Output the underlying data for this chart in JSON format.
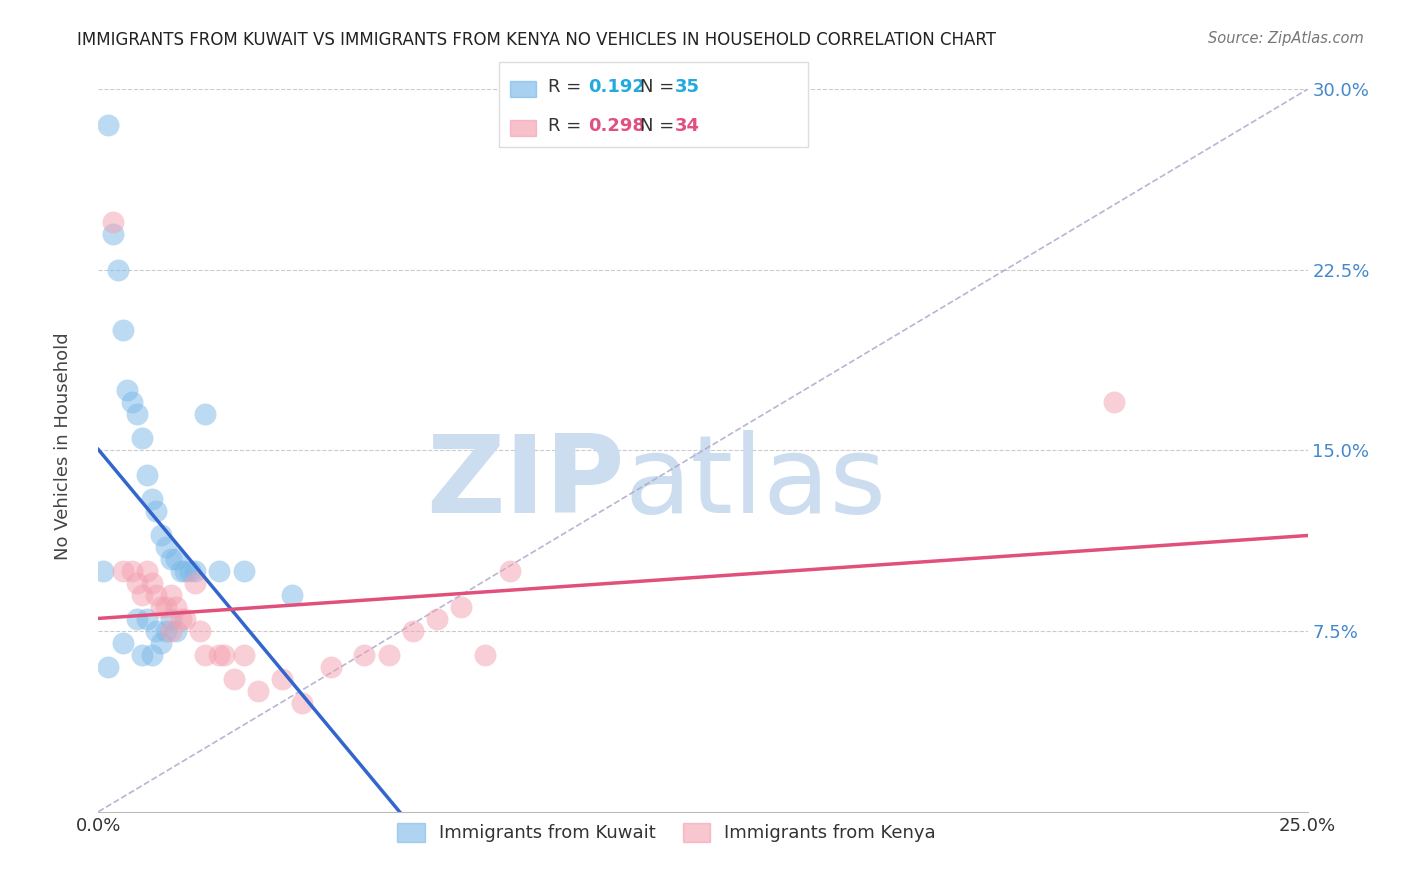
{
  "title": "IMMIGRANTS FROM KUWAIT VS IMMIGRANTS FROM KENYA NO VEHICLES IN HOUSEHOLD CORRELATION CHART",
  "source": "Source: ZipAtlas.com",
  "ylabel": "No Vehicles in Household",
  "xlim": [
    0.0,
    0.25
  ],
  "ylim": [
    0.0,
    0.3
  ],
  "xticks": [
    0.0,
    0.05,
    0.1,
    0.15,
    0.2,
    0.25
  ],
  "yticks": [
    0.0,
    0.075,
    0.15,
    0.225,
    0.3
  ],
  "kuwait_color": "#7ab8e8",
  "kenya_color": "#f4a0b0",
  "kuwait_line_color": "#3366cc",
  "kenya_line_color": "#e0507a",
  "diagonal_color": "#aaaacc",
  "watermark_zip": "ZIP",
  "watermark_atlas": "atlas",
  "watermark_color": "#ccddf0",
  "legend_r1": "R = ",
  "legend_r1_val": "0.192",
  "legend_n1": "  N = ",
  "legend_n1_val": "35",
  "legend_r2": "R = ",
  "legend_r2_val": "0.298",
  "legend_n2": "  N = ",
  "legend_n2_val": "34",
  "kuwait_x": [
    0.001,
    0.002,
    0.002,
    0.003,
    0.004,
    0.005,
    0.005,
    0.006,
    0.007,
    0.008,
    0.008,
    0.009,
    0.009,
    0.01,
    0.01,
    0.011,
    0.011,
    0.012,
    0.012,
    0.013,
    0.013,
    0.014,
    0.014,
    0.015,
    0.015,
    0.016,
    0.016,
    0.017,
    0.018,
    0.019,
    0.02,
    0.022,
    0.025,
    0.03,
    0.04
  ],
  "kuwait_y": [
    0.1,
    0.285,
    0.06,
    0.24,
    0.225,
    0.2,
    0.07,
    0.175,
    0.17,
    0.165,
    0.08,
    0.155,
    0.065,
    0.14,
    0.08,
    0.13,
    0.065,
    0.125,
    0.075,
    0.115,
    0.07,
    0.11,
    0.075,
    0.105,
    0.08,
    0.105,
    0.075,
    0.1,
    0.1,
    0.1,
    0.1,
    0.165,
    0.1,
    0.1,
    0.09
  ],
  "kenya_x": [
    0.003,
    0.005,
    0.007,
    0.008,
    0.009,
    0.01,
    0.011,
    0.012,
    0.013,
    0.014,
    0.015,
    0.015,
    0.016,
    0.017,
    0.018,
    0.02,
    0.021,
    0.022,
    0.025,
    0.026,
    0.028,
    0.03,
    0.033,
    0.038,
    0.042,
    0.048,
    0.055,
    0.06,
    0.065,
    0.07,
    0.075,
    0.08,
    0.085,
    0.21
  ],
  "kenya_y": [
    0.245,
    0.1,
    0.1,
    0.095,
    0.09,
    0.1,
    0.095,
    0.09,
    0.085,
    0.085,
    0.09,
    0.075,
    0.085,
    0.08,
    0.08,
    0.095,
    0.075,
    0.065,
    0.065,
    0.065,
    0.055,
    0.065,
    0.05,
    0.055,
    0.045,
    0.06,
    0.065,
    0.065,
    0.075,
    0.08,
    0.085,
    0.065,
    0.1,
    0.17
  ]
}
